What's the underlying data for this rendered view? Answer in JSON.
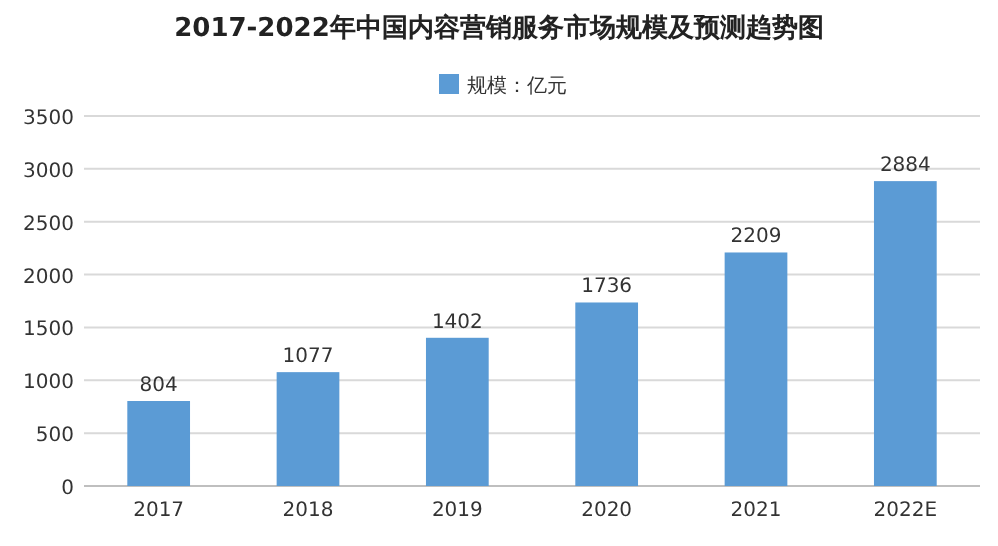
{
  "chart_data": {
    "type": "bar",
    "title": "2017-2022年中国内容营销服务市场规模及预测趋势图",
    "categories": [
      "2017",
      "2018",
      "2019",
      "2020",
      "2021",
      "2022E"
    ],
    "series": [
      {
        "name": "规模：亿元",
        "color": "#5b9bd5",
        "values": [
          804,
          1077,
          1402,
          1736,
          2209,
          2884
        ]
      }
    ],
    "ylim": [
      0,
      3500
    ],
    "yticks": [
      0,
      500,
      1000,
      1500,
      2000,
      2500,
      3000,
      3500
    ],
    "grid": "y",
    "legend": "top",
    "data_labels": true
  }
}
